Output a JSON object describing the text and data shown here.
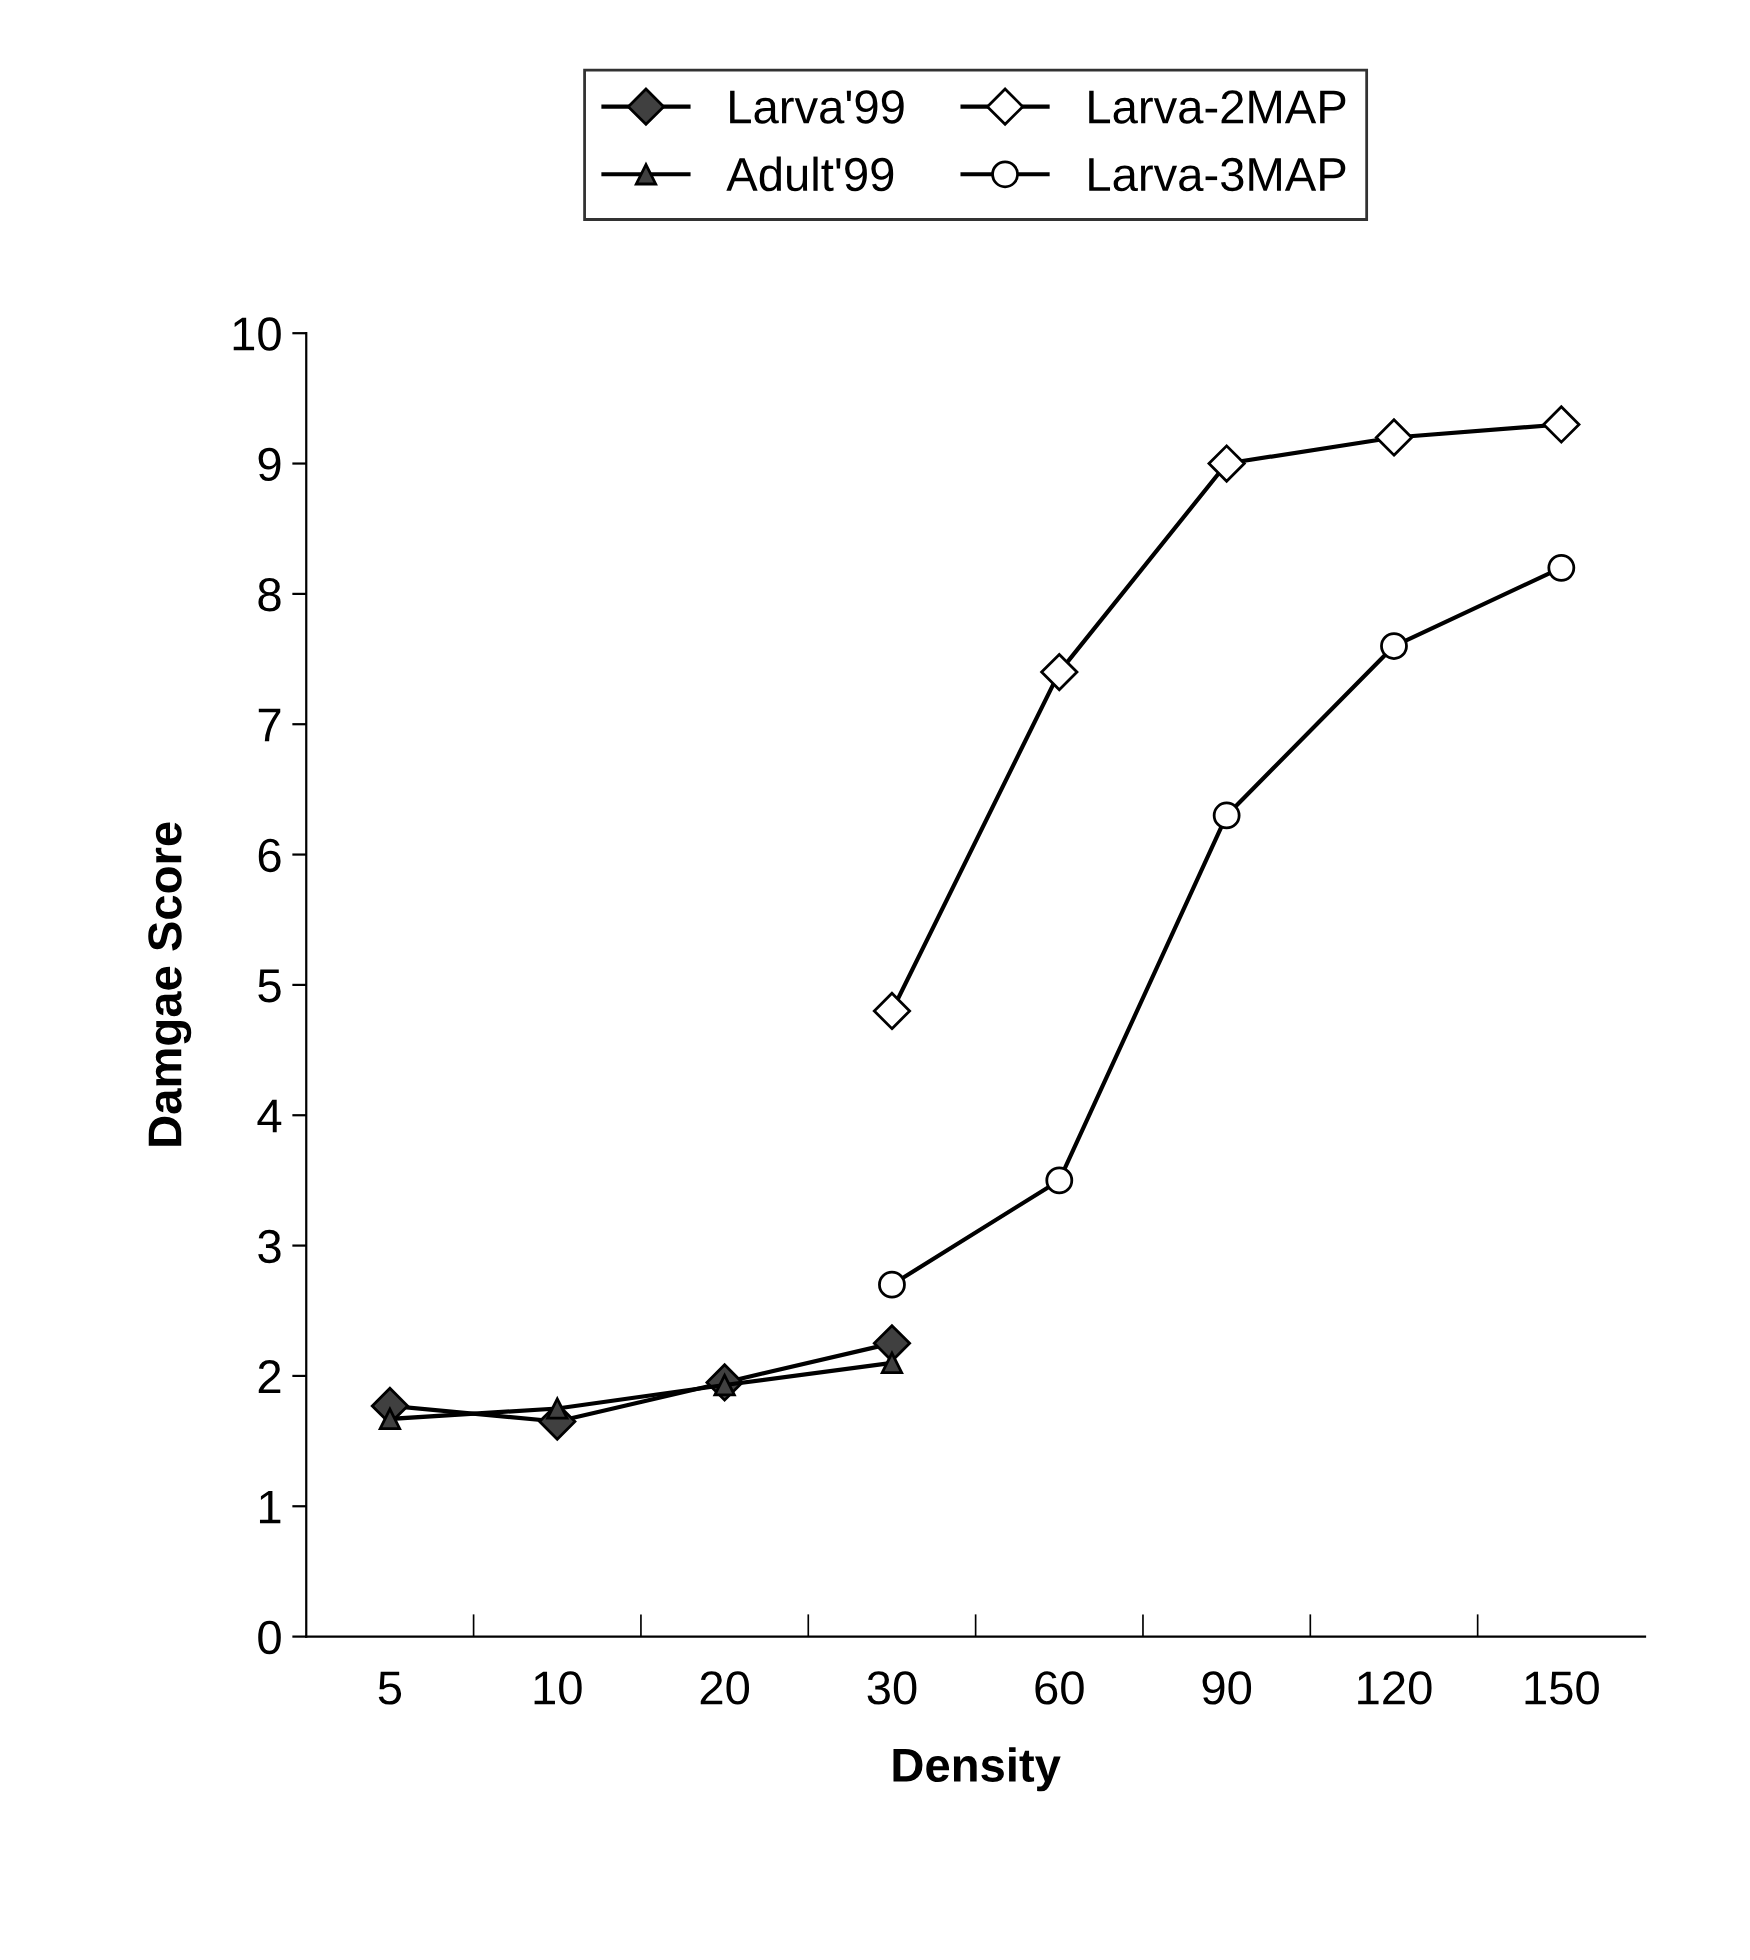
{
  "chart_data": {
    "type": "line",
    "xlabel": "Density",
    "ylabel": "Damgae Score",
    "categories": [
      "5",
      "10",
      "20",
      "30",
      "60",
      "90",
      "120",
      "150"
    ],
    "series": [
      {
        "name": "Larva'99",
        "color": "#404040",
        "marker": "diamond",
        "values": [
          1.77,
          1.65,
          1.95,
          2.25,
          null,
          null,
          null,
          null
        ]
      },
      {
        "name": "Adult'99",
        "color": "#404040",
        "marker": "triangle",
        "values": [
          1.67,
          1.75,
          1.93,
          2.1,
          null,
          null,
          null,
          null
        ]
      },
      {
        "name": "Larva-2MAP",
        "color": "#ffffff",
        "marker": "diamond",
        "values": [
          null,
          null,
          null,
          4.8,
          7.4,
          9.0,
          9.2,
          9.3
        ]
      },
      {
        "name": "Larva-3MAP",
        "color": "#ffffff",
        "marker": "circle",
        "values": [
          null,
          null,
          null,
          2.7,
          3.5,
          6.3,
          7.6,
          8.2
        ]
      }
    ],
    "ylim": [
      0,
      10
    ],
    "yticks": [
      0,
      1,
      2,
      3,
      4,
      5,
      6,
      7,
      8,
      9,
      10
    ],
    "grid": false,
    "legend": "top"
  }
}
